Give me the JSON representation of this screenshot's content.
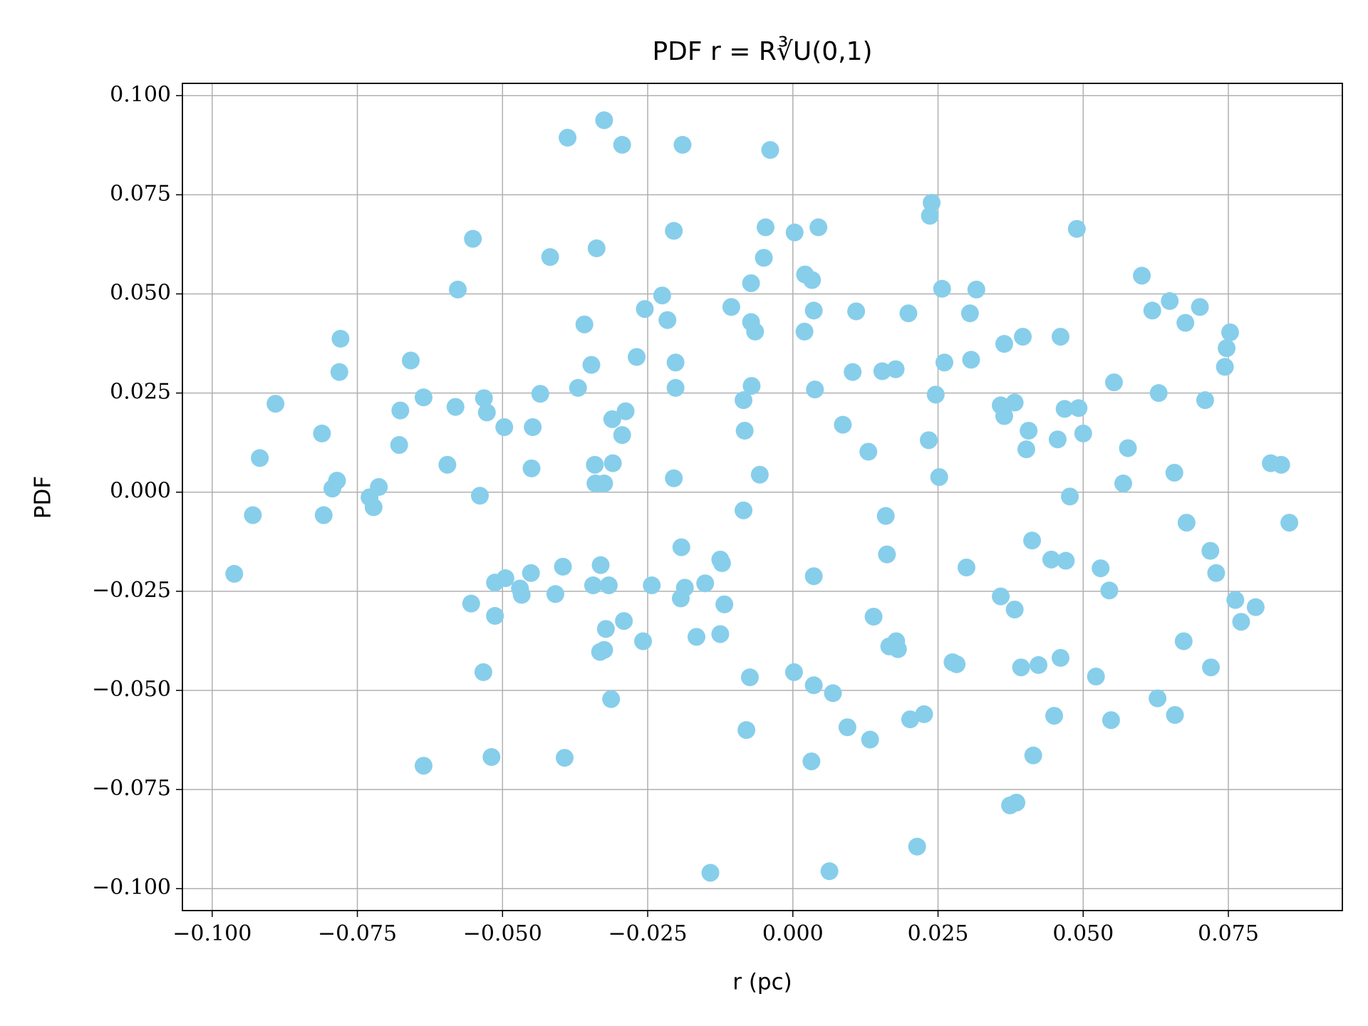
{
  "chart_data": {
    "type": "scatter",
    "title": "PDF r = R∛U(0,1)",
    "xlabel": "r (pc)",
    "ylabel": "PDF",
    "color": "#87ceeb",
    "grid": true,
    "xlim": [
      -0.10513,
      0.09463
    ],
    "ylim": [
      -0.10553,
      0.1031
    ],
    "xticks": [
      {
        "value": -0.1,
        "label": "−0.100"
      },
      {
        "value": -0.075,
        "label": "−0.075"
      },
      {
        "value": -0.05,
        "label": "−0.050"
      },
      {
        "value": -0.025,
        "label": "−0.025"
      },
      {
        "value": 0,
        "label": "0.000"
      },
      {
        "value": 0.025,
        "label": "0.025"
      },
      {
        "value": 0.05,
        "label": "0.050"
      },
      {
        "value": 0.075,
        "label": "0.075"
      }
    ],
    "yticks": [
      {
        "value": -0.1,
        "label": "−0.100"
      },
      {
        "value": -0.075,
        "label": "−0.075"
      },
      {
        "value": -0.05,
        "label": "−0.050"
      },
      {
        "value": -0.025,
        "label": "−0.025"
      },
      {
        "value": 0,
        "label": "0.000"
      },
      {
        "value": 0.025,
        "label": "0.025"
      },
      {
        "value": 0.05,
        "label": "0.050"
      },
      {
        "value": 0.075,
        "label": "0.075"
      },
      {
        "value": 0.1,
        "label": "0.100"
      }
    ],
    "x": [
      -0.0325,
      -0.0388,
      -0.0294,
      -0.019,
      -0.0039,
      0.0239,
      0.0236,
      -0.0551,
      -0.0338,
      -0.0418,
      -0.0205,
      -0.0047,
      0.0003,
      0.0044,
      -0.005,
      0.0489,
      -0.0577,
      0.0021,
      0.0033,
      -0.0072,
      -0.0225,
      0.0257,
      0.0316,
      0.0601,
      0.0649,
      0.0619,
      0.0701,
      0.0676,
      -0.0255,
      -0.0106,
      -0.0216,
      0.0036,
      0.0109,
      0.0199,
      0.0305,
      -0.0072,
      -0.0065,
      -0.0359,
      -0.0779,
      0.0396,
      0.0461,
      0.0364,
      0.0753,
      0.0747,
      0.002,
      -0.0781,
      -0.0658,
      -0.0269,
      -0.0347,
      -0.0202,
      0.0261,
      0.0307,
      0.0744,
      0.0103,
      0.0154,
      0.0177,
      0.0553,
      -0.037,
      -0.0202,
      -0.0071,
      0.0038,
      0.0246,
      0.063,
      -0.0435,
      -0.0636,
      -0.0532,
      -0.0891,
      -0.0581,
      -0.0085,
      0.071,
      0.0358,
      0.0382,
      0.0364,
      -0.0676,
      -0.0527,
      -0.0288,
      0.0468,
      0.0492,
      -0.0311,
      -0.0497,
      -0.0448,
      0.0086,
      0.0406,
      -0.0811,
      -0.0294,
      -0.0083,
      0.05,
      0.0456,
      0.0234,
      -0.0678,
      0.0402,
      0.0577,
      0.013,
      -0.0918,
      -0.0595,
      -0.045,
      -0.0341,
      -0.031,
      0.0823,
      0.0841,
      -0.0057,
      -0.0205,
      0.0252,
      0.0657,
      -0.034,
      -0.0325,
      0.0569,
      -0.0785,
      -0.0713,
      -0.0793,
      -0.0729,
      -0.0722,
      -0.0539,
      0.0477,
      -0.093,
      -0.0808,
      0.016,
      -0.0085,
      0.0855,
      0.0678,
      0.0412,
      -0.0192,
      0.0719,
      0.0162,
      -0.0125,
      -0.0122,
      -0.0331,
      -0.0396,
      0.0445,
      0.047,
      0.0299,
      -0.0962,
      -0.0451,
      -0.0495,
      -0.0513,
      0.0036,
      0.053,
      0.0729,
      -0.0344,
      -0.0317,
      -0.0243,
      -0.0151,
      -0.0186,
      -0.047,
      -0.0467,
      -0.0409,
      -0.0193,
      0.0545,
      0.0358,
      -0.0554,
      -0.0118,
      0.0762,
      0.0797,
      0.0382,
      -0.0513,
      0.0139,
      -0.0291,
      0.0772,
      -0.0322,
      -0.0166,
      -0.0125,
      -0.0258,
      0.0178,
      0.0673,
      0.0166,
      0.0181,
      -0.0325,
      -0.0332,
      0.0461,
      0.0275,
      0.0282,
      0.0423,
      0.0393,
      0.072,
      -0.0533,
      0.0002,
      -0.0074,
      0.0522,
      0.0036,
      0.0069,
      -0.0313,
      0.0628,
      0.0658,
      0.045,
      0.0226,
      0.0202,
      0.0548,
      0.0094,
      -0.008,
      0.0133,
      -0.0519,
      -0.0393,
      0.0414,
      0.0032,
      -0.0636,
      0.0385,
      0.0374,
      0.0214,
      -0.0142,
      0.0063
    ],
    "y": [
      0.0938,
      0.0894,
      0.0876,
      0.0876,
      0.0863,
      0.073,
      0.0697,
      0.0639,
      0.0615,
      0.0593,
      0.0659,
      0.0668,
      0.0655,
      0.0668,
      0.0591,
      0.0664,
      0.0511,
      0.0549,
      0.0535,
      0.0527,
      0.0496,
      0.0513,
      0.0511,
      0.0546,
      0.0482,
      0.0458,
      0.0467,
      0.0427,
      0.0462,
      0.0467,
      0.0434,
      0.0458,
      0.0456,
      0.0451,
      0.0451,
      0.0429,
      0.0405,
      0.0423,
      0.0387,
      0.0392,
      0.0392,
      0.0374,
      0.0403,
      0.0363,
      0.0405,
      0.0303,
      0.0332,
      0.0341,
      0.0321,
      0.0327,
      0.0327,
      0.0334,
      0.0316,
      0.0303,
      0.0305,
      0.031,
      0.0277,
      0.0263,
      0.0263,
      0.0268,
      0.0259,
      0.0246,
      0.025,
      0.0248,
      0.0239,
      0.0237,
      0.0223,
      0.0215,
      0.0232,
      0.0232,
      0.0219,
      0.0226,
      0.0192,
      0.0206,
      0.0201,
      0.0204,
      0.021,
      0.0212,
      0.0184,
      0.0164,
      0.0164,
      0.017,
      0.0155,
      0.0148,
      0.0144,
      0.0155,
      0.0148,
      0.0133,
      0.0131,
      0.0119,
      0.0108,
      0.0111,
      0.0102,
      0.0086,
      0.0069,
      0.006,
      0.0069,
      0.0073,
      0.0073,
      0.0069,
      0.0044,
      0.0035,
      0.0038,
      0.0049,
      0.0022,
      0.0022,
      0.0022,
      0.0029,
      0.0013,
      0.0009,
      -0.0013,
      -0.0038,
      -0.0009,
      -0.0011,
      -0.0058,
      -0.0058,
      -0.006,
      -0.0046,
      -0.0077,
      -0.0077,
      -0.0122,
      -0.0139,
      -0.0148,
      -0.0157,
      -0.017,
      -0.0179,
      -0.0184,
      -0.0188,
      -0.017,
      -0.0173,
      -0.019,
      -0.0206,
      -0.0204,
      -0.0217,
      -0.0228,
      -0.0212,
      -0.0192,
      -0.0204,
      -0.0235,
      -0.0235,
      -0.0235,
      -0.023,
      -0.0241,
      -0.0243,
      -0.0259,
      -0.0257,
      -0.0268,
      -0.0248,
      -0.0263,
      -0.0281,
      -0.0283,
      -0.0272,
      -0.029,
      -0.0296,
      -0.0312,
      -0.0314,
      -0.0325,
      -0.0327,
      -0.0345,
      -0.0365,
      -0.0358,
      -0.0376,
      -0.0376,
      -0.0376,
      -0.0389,
      -0.0396,
      -0.0398,
      -0.0403,
      -0.0418,
      -0.0429,
      -0.0434,
      -0.0436,
      -0.0442,
      -0.0442,
      -0.0454,
      -0.0454,
      -0.0467,
      -0.0465,
      -0.0487,
      -0.0507,
      -0.0522,
      -0.052,
      -0.0562,
      -0.0564,
      -0.056,
      -0.0573,
      -0.0575,
      -0.0593,
      -0.06,
      -0.0624,
      -0.0668,
      -0.067,
      -0.0664,
      -0.0679,
      -0.069,
      -0.0783,
      -0.079,
      -0.0894,
      -0.096,
      -0.0956
    ]
  }
}
